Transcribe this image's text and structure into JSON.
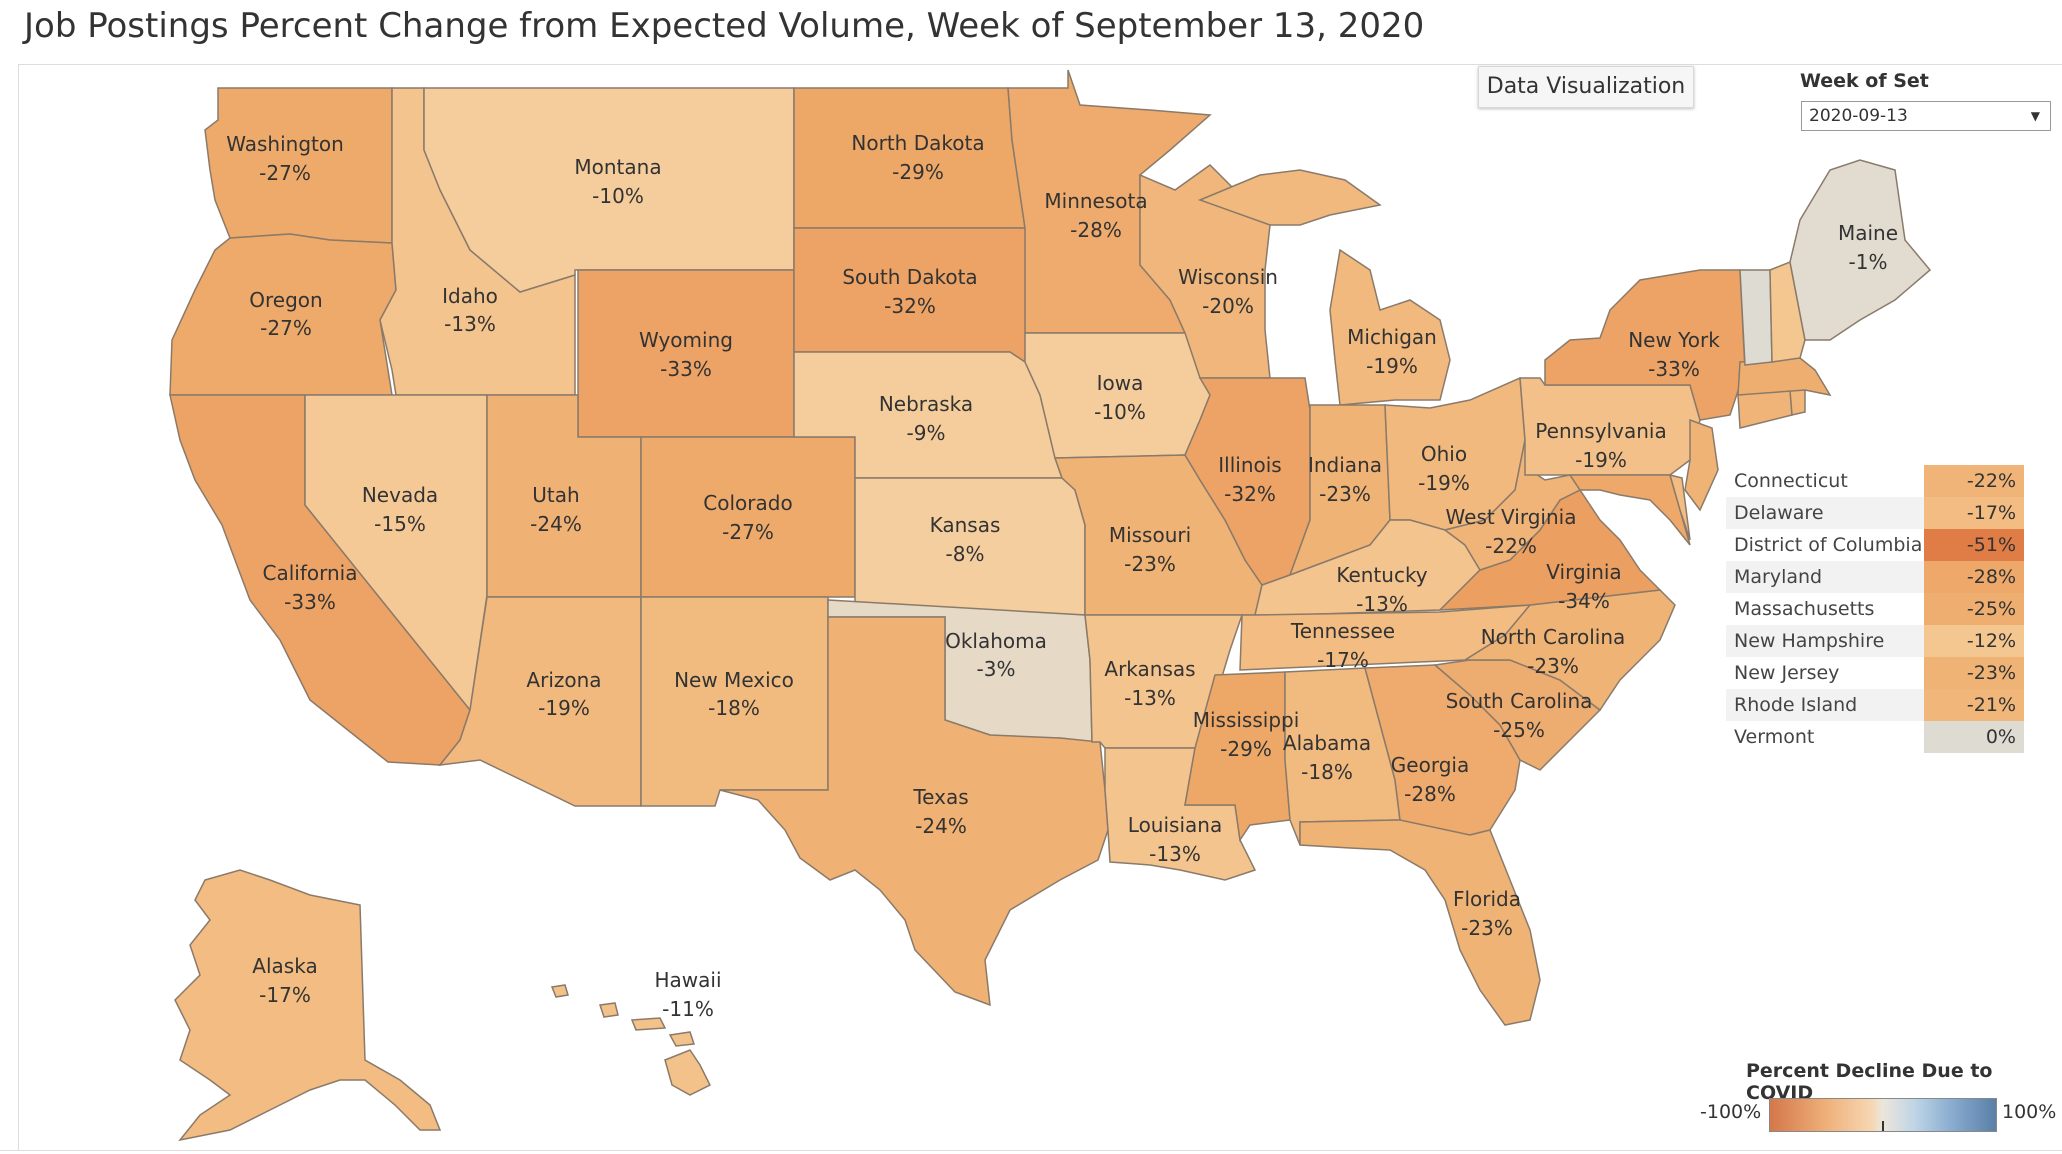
{
  "title": "Job Postings Percent Change from Expected Volume, Week of September 13, 2020",
  "button": {
    "label": "Data Visualization"
  },
  "filter": {
    "label": "Week of Set",
    "value": "2020-09-13"
  },
  "legend": {
    "title": "Percent Decline Due to COVID",
    "min": "-100%",
    "max": "100%",
    "scale": {
      "min": -100,
      "mid": 0,
      "max": 100,
      "low_color": "#d4774a",
      "mid_color": "#ece6dc",
      "high_color": "#5a7fa8"
    }
  },
  "colors": {
    "c0": "#e1dbd0",
    "c3": "#e6d9c6",
    "c8": "#f5cea0",
    "c13": "#f4c48e",
    "c17": "#f2bc82",
    "c19": "#f1b97d",
    "c23": "#efb375",
    "c27": "#eeaa6b",
    "c32": "#eda365",
    "c34": "#eb9f60",
    "c51": "#e07c45"
  },
  "states": {
    "washington": {
      "name": "Washington",
      "value": "-27%"
    },
    "oregon": {
      "name": "Oregon",
      "value": "-27%"
    },
    "california": {
      "name": "California",
      "value": "-33%"
    },
    "idaho": {
      "name": "Idaho",
      "value": "-13%"
    },
    "nevada": {
      "name": "Nevada",
      "value": "-15%"
    },
    "montana": {
      "name": "Montana",
      "value": "-10%"
    },
    "wyoming": {
      "name": "Wyoming",
      "value": "-33%"
    },
    "utah": {
      "name": "Utah",
      "value": "-24%"
    },
    "arizona": {
      "name": "Arizona",
      "value": "-19%"
    },
    "colorado": {
      "name": "Colorado",
      "value": "-27%"
    },
    "new_mexico": {
      "name": "New Mexico",
      "value": "-18%"
    },
    "north_dakota": {
      "name": "North Dakota",
      "value": "-29%"
    },
    "south_dakota": {
      "name": "South Dakota",
      "value": "-32%"
    },
    "nebraska": {
      "name": "Nebraska",
      "value": "-9%"
    },
    "kansas": {
      "name": "Kansas",
      "value": "-8%"
    },
    "oklahoma": {
      "name": "Oklahoma",
      "value": "-3%"
    },
    "texas": {
      "name": "Texas",
      "value": "-24%"
    },
    "minnesota": {
      "name": "Minnesota",
      "value": "-28%"
    },
    "iowa": {
      "name": "Iowa",
      "value": "-10%"
    },
    "missouri": {
      "name": "Missouri",
      "value": "-23%"
    },
    "arkansas": {
      "name": "Arkansas",
      "value": "-13%"
    },
    "louisiana": {
      "name": "Louisiana",
      "value": "-13%"
    },
    "wisconsin": {
      "name": "Wisconsin",
      "value": "-20%"
    },
    "illinois": {
      "name": "Illinois",
      "value": "-32%"
    },
    "michigan": {
      "name": "Michigan",
      "value": "-19%"
    },
    "indiana": {
      "name": "Indiana",
      "value": "-23%"
    },
    "ohio": {
      "name": "Ohio",
      "value": "-19%"
    },
    "kentucky": {
      "name": "Kentucky",
      "value": "-13%"
    },
    "tennessee": {
      "name": "Tennessee",
      "value": "-17%"
    },
    "mississippi": {
      "name": "Mississippi",
      "value": "-29%"
    },
    "alabama": {
      "name": "Alabama",
      "value": "-18%"
    },
    "georgia": {
      "name": "Georgia",
      "value": "-28%"
    },
    "florida": {
      "name": "Florida",
      "value": "-23%"
    },
    "south_carolina": {
      "name": "South Carolina",
      "value": "-25%"
    },
    "north_carolina": {
      "name": "North Carolina",
      "value": "-23%"
    },
    "virginia": {
      "name": "Virginia",
      "value": "-34%"
    },
    "west_virginia": {
      "name": "West Virginia",
      "value": "-22%"
    },
    "pennsylvania": {
      "name": "Pennsylvania",
      "value": "-19%"
    },
    "new_york": {
      "name": "New York",
      "value": "-33%"
    },
    "maine": {
      "name": "Maine",
      "value": "-1%"
    },
    "alaska": {
      "name": "Alaska",
      "value": "-17%"
    },
    "hawaii": {
      "name": "Hawaii",
      "value": "-11%"
    }
  },
  "small_states": [
    {
      "name": "Connecticut",
      "value": "-22%",
      "color": "#f0b479"
    },
    {
      "name": "Delaware",
      "value": "-17%",
      "color": "#f2bc82"
    },
    {
      "name": "District of Columbia",
      "value": "-51%",
      "color": "#e07c45"
    },
    {
      "name": "Maryland",
      "value": "-28%",
      "color": "#eda86a"
    },
    {
      "name": "Massachusetts",
      "value": "-25%",
      "color": "#eeae70"
    },
    {
      "name": "New Hampshire",
      "value": "-12%",
      "color": "#f4c690"
    },
    {
      "name": "New Jersey",
      "value": "-23%",
      "color": "#efb375"
    },
    {
      "name": "Rhode Island",
      "value": "-21%",
      "color": "#f0b67a"
    },
    {
      "name": "Vermont",
      "value": "0%",
      "color": "#dddbd2"
    }
  ]
}
